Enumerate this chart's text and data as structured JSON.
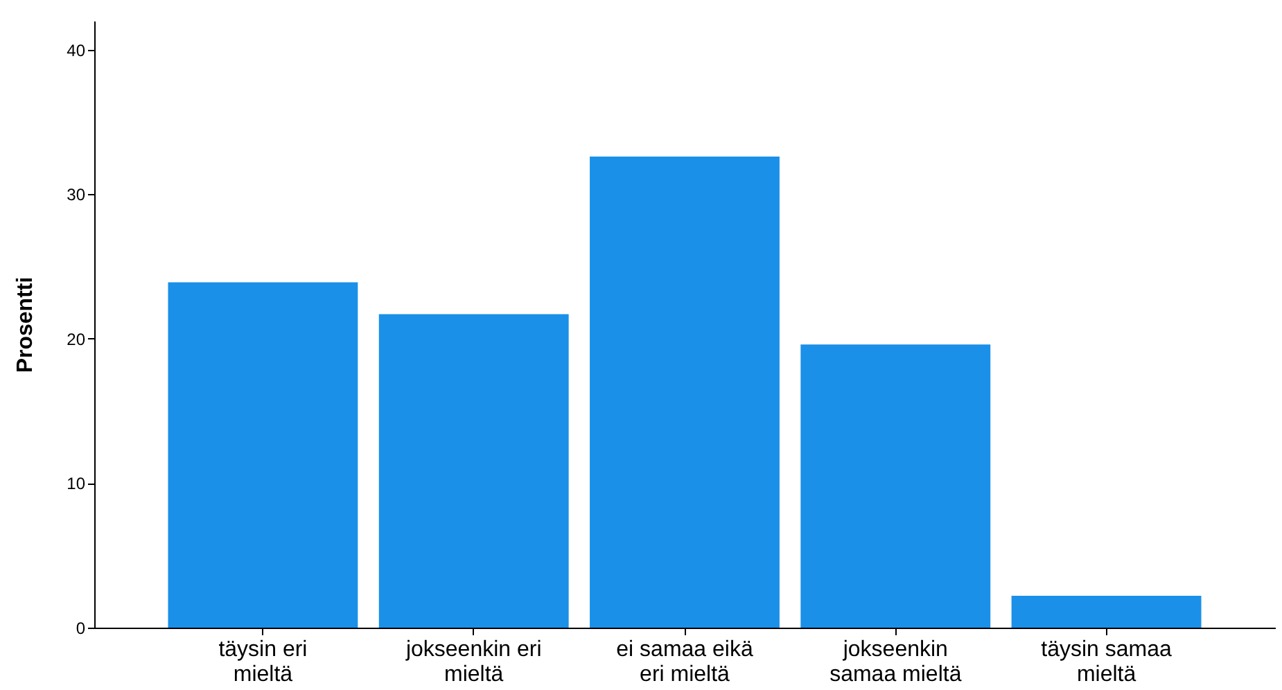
{
  "chart_data": {
    "type": "bar",
    "ylabel": "Prosentti",
    "categories": [
      "täysin eri mieltä",
      "jokseenkin eri mieltä",
      "ei samaa eikä eri mieltä",
      "jokseenkin samaa mieltä",
      "täysin samaa mieltä"
    ],
    "values": [
      23.9,
      21.7,
      32.6,
      19.6,
      2.2
    ],
    "color": "#1a90e8",
    "ylim": [
      0,
      42
    ],
    "yticks": [
      0,
      10,
      20,
      30,
      40
    ],
    "grid": false
  }
}
